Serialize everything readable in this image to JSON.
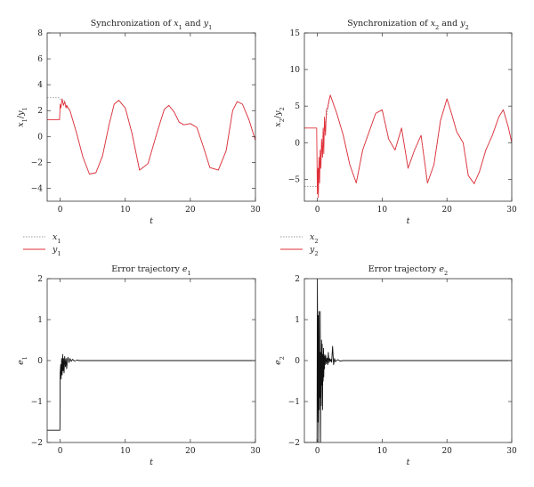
{
  "chart_data": [
    {
      "type": "line",
      "title_parts": [
        "Synchronization of ",
        "x",
        "1",
        " and ",
        "y",
        "1"
      ],
      "xlabel": "t",
      "ylabel_parts": [
        "x",
        "1",
        "/",
        "y",
        "1"
      ],
      "xlim": [
        -2,
        30
      ],
      "ylim": [
        -5,
        8
      ],
      "xticks": [
        0,
        10,
        20,
        30
      ],
      "yticks": [
        -4,
        -2,
        0,
        2,
        4,
        6,
        8
      ],
      "grid": false,
      "legend_position": "below",
      "series": [
        {
          "name": "x1",
          "legend_parts": [
            "x",
            "1"
          ],
          "color": "#999999",
          "style": "dotted",
          "x": [
            -2,
            -0.2,
            0,
            0.3,
            0.6,
            1,
            1.5,
            2.5,
            3.5,
            4.5,
            5.5,
            6.5,
            7.5,
            8.3,
            9,
            10,
            11,
            12.2,
            13.5,
            15,
            16,
            16.7,
            17.5,
            18.3,
            19,
            20,
            21,
            22,
            23,
            24.3,
            25.5,
            26.5,
            27.2,
            28,
            29,
            30
          ],
          "y": [
            3,
            3,
            2.9,
            2.7,
            2.8,
            2.3,
            2,
            0.3,
            -1.6,
            -2.9,
            -2.8,
            -1.5,
            0.9,
            2.5,
            2.8,
            2.2,
            0.3,
            -2.6,
            -2.1,
            0.5,
            2.1,
            2.4,
            1.9,
            1.1,
            0.9,
            1.0,
            0.7,
            -0.8,
            -2.4,
            -2.6,
            -1.1,
            2,
            2.7,
            2.5,
            1.3,
            -0.3
          ]
        },
        {
          "name": "y1",
          "legend_parts": [
            "y",
            "1"
          ],
          "color": "#e0303a",
          "style": "solid",
          "x": [
            -2,
            -0.1,
            0,
            0.1,
            0.3,
            0.5,
            0.7,
            0.9,
            1,
            1.5,
            2.5,
            3.5,
            4.5,
            5.5,
            6.5,
            7.5,
            8.3,
            9,
            10,
            11,
            12.2,
            13.5,
            15,
            16,
            16.7,
            17.5,
            18.3,
            19,
            20,
            21,
            22,
            23,
            24.3,
            25.5,
            26.5,
            27.2,
            28,
            29,
            30
          ],
          "y": [
            1.3,
            1.3,
            2.5,
            2.2,
            2.9,
            2.4,
            2.7,
            2.2,
            2.4,
            2.0,
            0.3,
            -1.6,
            -2.9,
            -2.8,
            -1.5,
            0.9,
            2.5,
            2.8,
            2.2,
            0.3,
            -2.6,
            -2.1,
            0.5,
            2.1,
            2.4,
            1.9,
            1.1,
            0.9,
            1.0,
            0.7,
            -0.8,
            -2.4,
            -2.6,
            -1.1,
            2,
            2.7,
            2.5,
            1.3,
            -0.3
          ]
        }
      ]
    },
    {
      "type": "line",
      "title_parts": [
        "Synchronization of ",
        "x",
        "2",
        " and ",
        "y",
        "2"
      ],
      "xlabel": "t",
      "ylabel_parts": [
        "x",
        "2",
        "/",
        "y",
        "2"
      ],
      "xlim": [
        -2,
        30
      ],
      "ylim": [
        -8,
        15
      ],
      "xticks": [
        0,
        10,
        20,
        30
      ],
      "yticks": [
        -5,
        0,
        5,
        10,
        15
      ],
      "grid": false,
      "legend_position": "below",
      "series": [
        {
          "name": "x2",
          "legend_parts": [
            "x",
            "2"
          ],
          "color": "#999999",
          "style": "dotted",
          "x": [
            -2,
            -0.3,
            0,
            0.4,
            0.8,
            1.3,
            2,
            3,
            4,
            5,
            6,
            7,
            8,
            9,
            10,
            11,
            12,
            13,
            14,
            15,
            16,
            17,
            18,
            19,
            20,
            20.7,
            21.5,
            22.5,
            23.3,
            24.2,
            25,
            26,
            27,
            28,
            28.7,
            29.5,
            30
          ],
          "y": [
            -6,
            -6,
            -6,
            -2,
            0,
            3,
            6.5,
            4,
            1,
            -3,
            -5.5,
            -1,
            1.5,
            4,
            4.5,
            0.5,
            -1,
            2,
            -3.5,
            -1,
            1,
            -5.5,
            -3,
            3,
            6,
            4,
            1.5,
            0,
            -4.5,
            -5.6,
            -4,
            -1,
            1,
            3.5,
            4.5,
            2,
            0
          ]
        },
        {
          "name": "y2",
          "legend_parts": [
            "y",
            "2"
          ],
          "color": "#e0303a",
          "style": "solid",
          "x": [
            -2,
            -0.1,
            0,
            0.1,
            0.15,
            0.25,
            0.35,
            0.45,
            0.55,
            0.65,
            0.8,
            0.9,
            1,
            1.1,
            1.25,
            1.4,
            1.6,
            1.8,
            2,
            3,
            4,
            5,
            6,
            7,
            8,
            9,
            10,
            11,
            12,
            13,
            14,
            15,
            16,
            17,
            18,
            19,
            20,
            20.7,
            21.5,
            22.5,
            23.3,
            24.2,
            25,
            26,
            27,
            28,
            28.7,
            29.5,
            30
          ],
          "y": [
            2,
            2,
            -7,
            -3.5,
            -7.5,
            -2,
            -5.5,
            -1,
            -3.5,
            0.5,
            -2,
            2,
            -1.5,
            3.5,
            1,
            4.5,
            4.8,
            5.8,
            6.5,
            4,
            1,
            -3,
            -5.5,
            -1,
            1.5,
            4,
            4.5,
            0.5,
            -1,
            2,
            -3.5,
            -1,
            1,
            -5.5,
            -3,
            3,
            6,
            4,
            1.5,
            0,
            -4.5,
            -5.6,
            -4,
            -1,
            1,
            3.5,
            4.5,
            2,
            0
          ]
        }
      ]
    },
    {
      "type": "line",
      "title_parts": [
        "Error trajectory ",
        "e",
        "1",
        "",
        "",
        ""
      ],
      "xlabel": "t",
      "ylabel_parts": [
        "e",
        "1",
        "",
        "",
        ""
      ],
      "xlim": [
        -2,
        30
      ],
      "ylim": [
        -2,
        2
      ],
      "xticks": [
        0,
        10,
        20,
        30
      ],
      "yticks": [
        -2,
        -1,
        0,
        1,
        2
      ],
      "grid": false,
      "legend_position": "none",
      "series": [
        {
          "name": "",
          "color": "#111111",
          "style": "solid",
          "x": [
            -2,
            -0.05,
            0,
            0.08,
            0.15,
            0.22,
            0.3,
            0.38,
            0.45,
            0.52,
            0.6,
            0.7,
            0.8,
            0.9,
            1,
            1.1,
            1.2,
            1.35,
            1.5,
            1.7,
            1.9,
            2.2,
            2.6,
            3,
            30
          ],
          "y": [
            -1.7,
            -1.7,
            -0.3,
            -0.1,
            -0.45,
            0.05,
            -0.35,
            0.15,
            -0.25,
            0.05,
            -0.3,
            0.1,
            -0.15,
            0.05,
            -0.2,
            0.02,
            0.08,
            -0.05,
            0.05,
            -0.02,
            0.03,
            -0.01,
            0.01,
            0,
            0
          ]
        }
      ]
    },
    {
      "type": "line",
      "title_parts": [
        "Error trajectory ",
        "e",
        "2",
        "",
        "",
        ""
      ],
      "xlabel": "t",
      "ylabel_parts": [
        "e",
        "2",
        "",
        "",
        ""
      ],
      "xlim": [
        -2,
        30
      ],
      "ylim": [
        -2,
        2
      ],
      "xticks": [
        0,
        10,
        20,
        30
      ],
      "yticks": [
        -2,
        -1,
        0,
        1,
        2
      ],
      "grid": false,
      "legend_position": "none",
      "series": [
        {
          "name": "",
          "color": "#111111",
          "style": "solid",
          "x": [
            -2,
            -0.05,
            0,
            0.05,
            0.1,
            0.15,
            0.2,
            0.25,
            0.3,
            0.35,
            0.4,
            0.45,
            0.5,
            0.55,
            0.6,
            0.65,
            0.7,
            0.75,
            0.8,
            0.85,
            0.9,
            0.95,
            1,
            1.05,
            1.1,
            1.15,
            1.2,
            1.3,
            1.4,
            1.5,
            1.6,
            1.7,
            1.8,
            1.9,
            2,
            2.1,
            2.2,
            2.35,
            2.5,
            2.65,
            2.8,
            3,
            3.2,
            3.5,
            4,
            30
          ],
          "y": [
            -2,
            -2,
            2,
            0.5,
            -1.5,
            1.1,
            -2,
            1.2,
            -1.2,
            0.2,
            -0.9,
            1.2,
            -2,
            0.2,
            -1.1,
            0.5,
            -0.6,
            0.4,
            -1.2,
            0.15,
            -0.5,
            0.3,
            -0.4,
            0.1,
            -0.2,
            0.15,
            -0.1,
            0.12,
            -0.08,
            0.06,
            -0.1,
            0.2,
            -0.05,
            0.05,
            -0.02,
            0.03,
            -0.04,
            0.35,
            -0.1,
            0.05,
            -0.03,
            0.01,
            0.02,
            -0.01,
            0,
            0
          ]
        }
      ]
    }
  ]
}
